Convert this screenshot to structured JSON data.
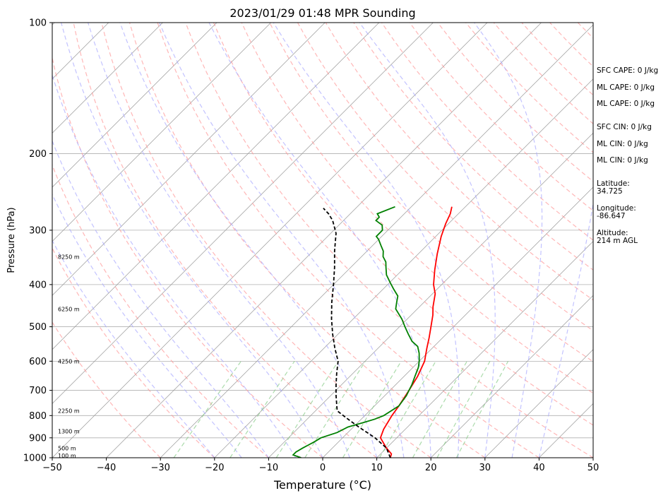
{
  "chart_data": {
    "type": "line",
    "title": "2023/01/29 01:48 MPR Sounding",
    "xlabel": "Temperature (°C)",
    "ylabel": "Pressure (hPa)",
    "xlim": [
      -50,
      50
    ],
    "ylim": [
      1000,
      100
    ],
    "y_scale": "log",
    "grid": true,
    "x_ticks": [
      -50,
      -40,
      -30,
      -20,
      -10,
      0,
      10,
      20,
      30,
      40,
      50
    ],
    "x_tick_labels": [
      "−50",
      "−40",
      "−30",
      "−20",
      "−10",
      "0",
      "10",
      "20",
      "30",
      "40",
      "50"
    ],
    "y_ticks": [
      100,
      200,
      300,
      400,
      500,
      600,
      700,
      800,
      900,
      1000
    ],
    "y_tick_labels": [
      "100",
      "200",
      "300",
      "400",
      "500",
      "600",
      "700",
      "800",
      "900",
      "1000"
    ],
    "height_labels": [
      {
        "text": "100 m",
        "pressure": 988
      },
      {
        "text": "500 m",
        "pressure": 950
      },
      {
        "text": "1300 m",
        "pressure": 870
      },
      {
        "text": "2250 m",
        "pressure": 780
      },
      {
        "text": "4250 m",
        "pressure": 600
      },
      {
        "text": "6250 m",
        "pressure": 455
      },
      {
        "text": "8250 m",
        "pressure": 345
      }
    ],
    "series": [
      {
        "color": "#ff0000",
        "style": "solid",
        "points": [
          [
            12.5,
            1000
          ],
          [
            12,
            980
          ],
          [
            10,
            950
          ],
          [
            7,
            900
          ],
          [
            6,
            860
          ],
          [
            5,
            800
          ],
          [
            4.5,
            760
          ],
          [
            3.5,
            700
          ],
          [
            2.5,
            650
          ],
          [
            1,
            600
          ],
          [
            -1,
            560
          ],
          [
            -2.5,
            530
          ],
          [
            -4.2,
            500
          ],
          [
            -6,
            470
          ],
          [
            -7.5,
            450
          ],
          [
            -9.5,
            420
          ],
          [
            -11.5,
            400
          ],
          [
            -14,
            370
          ],
          [
            -16.5,
            340
          ],
          [
            -19,
            310
          ],
          [
            -20.5,
            290
          ],
          [
            -21.5,
            275
          ],
          [
            -22.5,
            265
          ]
        ]
      },
      {
        "color": "#008000",
        "style": "solid",
        "points": [
          [
            -4,
            1000
          ],
          [
            -6,
            985
          ],
          [
            -6,
            970
          ],
          [
            -5.5,
            950
          ],
          [
            -5,
            935
          ],
          [
            -4.5,
            920
          ],
          [
            -4,
            900
          ],
          [
            -2,
            875
          ],
          [
            -1,
            850
          ],
          [
            1,
            830
          ],
          [
            2.5,
            815
          ],
          [
            3.5,
            800
          ],
          [
            4.5,
            760
          ],
          [
            4,
            720
          ],
          [
            3.5,
            700
          ],
          [
            3,
            680
          ],
          [
            2,
            650
          ],
          [
            1,
            620
          ],
          [
            0,
            600
          ],
          [
            -1.5,
            575
          ],
          [
            -3,
            555
          ],
          [
            -5,
            540
          ],
          [
            -7,
            520
          ],
          [
            -9,
            500
          ],
          [
            -11,
            480
          ],
          [
            -14,
            455
          ],
          [
            -15,
            440
          ],
          [
            -16,
            425
          ],
          [
            -18,
            410
          ],
          [
            -20,
            395
          ],
          [
            -22,
            380
          ],
          [
            -23.5,
            365
          ],
          [
            -24.5,
            355
          ],
          [
            -26,
            345
          ],
          [
            -27,
            335
          ],
          [
            -28.5,
            325
          ],
          [
            -30,
            315
          ],
          [
            -31,
            310
          ],
          [
            -31,
            300
          ],
          [
            -32,
            292
          ],
          [
            -34,
            285
          ],
          [
            -34,
            280
          ],
          [
            -35,
            275
          ],
          [
            -33,
            265
          ]
        ]
      },
      {
        "color": "#000000",
        "style": "dashed",
        "points": [
          [
            12.5,
            1000
          ],
          [
            10,
            950
          ],
          [
            6,
            900
          ],
          [
            1,
            850
          ],
          [
            -3,
            810
          ],
          [
            -5,
            790
          ],
          [
            -6,
            780
          ],
          [
            -9,
            720
          ],
          [
            -11,
            680
          ],
          [
            -13,
            640
          ],
          [
            -15,
            600
          ],
          [
            -18,
            560
          ],
          [
            -21,
            520
          ],
          [
            -24,
            480
          ],
          [
            -27,
            440
          ],
          [
            -30,
            400
          ],
          [
            -33,
            365
          ],
          [
            -36,
            335
          ],
          [
            -39,
            305
          ],
          [
            -42,
            285
          ],
          [
            -44,
            275
          ],
          [
            -46,
            267
          ]
        ]
      }
    ]
  },
  "side_info": [
    {
      "text": "SFC CAPE: 0 J/kg"
    },
    {
      "text": "ML CAPE: 0 J/kg"
    },
    {
      "text": "ML CAPE: 0 J/kg"
    },
    {
      "text": "SFC CIN: 0 J/kg"
    },
    {
      "text": "ML CIN: 0 J/kg"
    },
    {
      "text": "ML CIN: 0 J/kg"
    },
    {
      "text": "Latitude:\n34.725"
    },
    {
      "text": "Longitude:\n-86.647"
    },
    {
      "text": "Altitude:\n214 m AGL"
    }
  ]
}
